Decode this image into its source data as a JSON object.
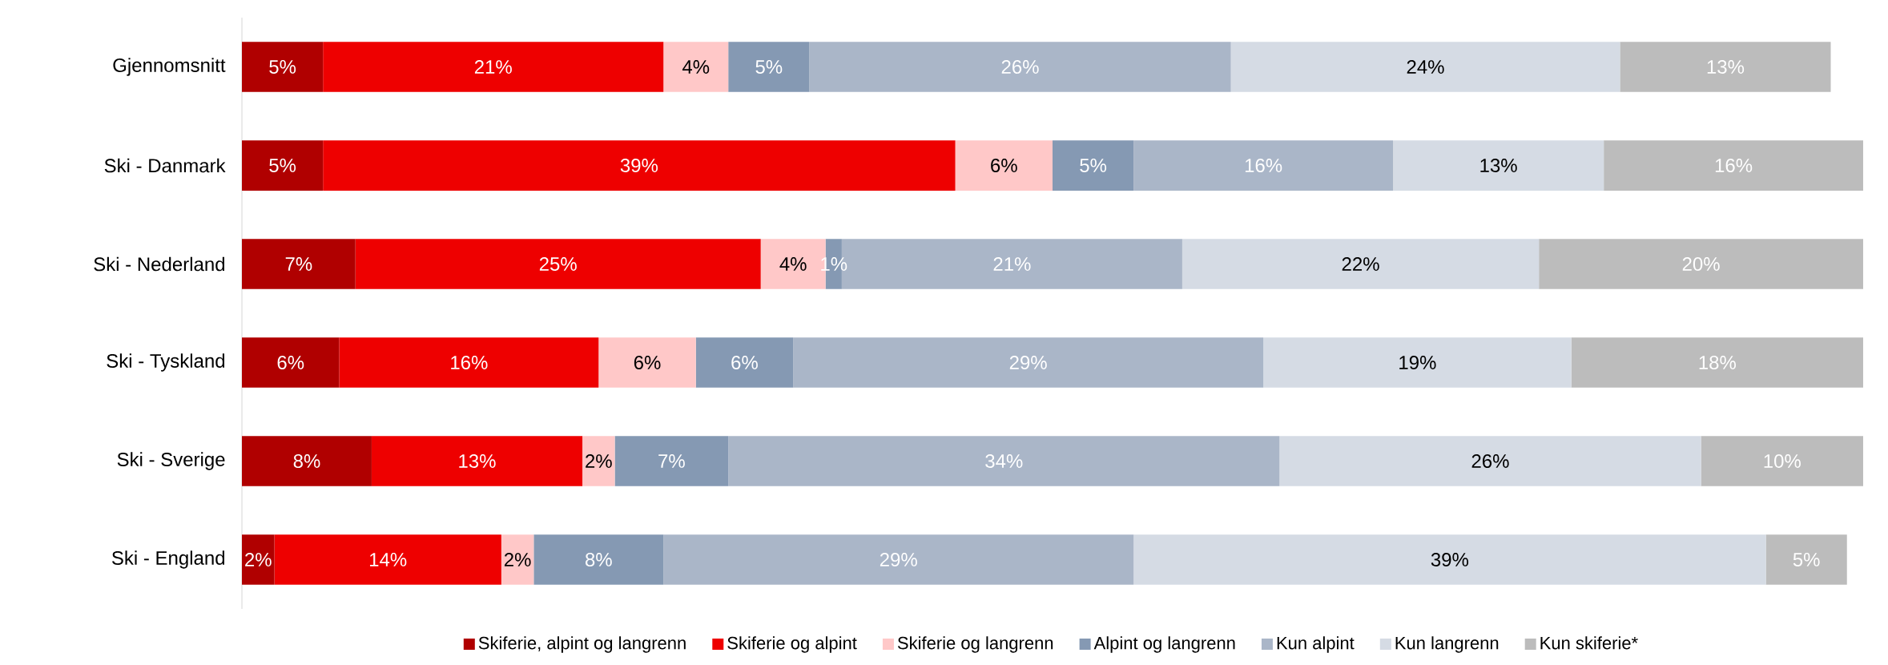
{
  "chart_data": {
    "type": "bar",
    "orientation": "horizontal",
    "stacked": true,
    "legend": "bottom",
    "tick_labels": "y",
    "categories": [
      "Gjennomsnitt",
      "Ski - Danmark",
      "Ski - Nederland",
      "Ski - Tyskland",
      "Ski - Sverige",
      "Ski - England"
    ],
    "series": [
      {
        "name": "Skiferie, alpint og langrenn",
        "color": "#b00000",
        "values": [
          5,
          5,
          7,
          6,
          8,
          2
        ],
        "value_labels": [
          "5%",
          "5%",
          "7%",
          "6%",
          "8%",
          "2%"
        ]
      },
      {
        "name": "Skiferie og alpint",
        "color": "#ee0000",
        "values": [
          21,
          39,
          25,
          16,
          13,
          14
        ],
        "value_labels": [
          "21%",
          "39%",
          "25%",
          "16%",
          "13%",
          "14%"
        ]
      },
      {
        "name": "Skiferie og langrenn",
        "color": "#ffc8c8",
        "values": [
          4,
          6,
          4,
          6,
          2,
          2
        ],
        "value_labels": [
          "4%",
          "6%",
          "4%",
          "6%",
          "2%",
          "2%"
        ]
      },
      {
        "name": "Alpint og langrenn",
        "color": "#8599b3",
        "values": [
          5,
          5,
          1,
          6,
          7,
          8
        ],
        "value_labels": [
          "5%",
          "5%",
          "1%",
          "6%",
          "7%",
          "8%"
        ]
      },
      {
        "name": "Kun alpint",
        "color": "#aab6c8",
        "values": [
          26,
          16,
          21,
          29,
          34,
          29
        ],
        "value_labels": [
          "26%",
          "16%",
          "21%",
          "29%",
          "34%",
          "29%"
        ]
      },
      {
        "name": "Kun langrenn",
        "color": "#d5dbe4",
        "values": [
          24,
          13,
          22,
          19,
          26,
          39
        ],
        "value_labels": [
          "24%",
          "13%",
          "22%",
          "19%",
          "26%",
          "39%"
        ]
      },
      {
        "name": "Kun skiferie*",
        "color": "#bcbcbc",
        "values": [
          13,
          16,
          20,
          18,
          10,
          5
        ],
        "value_labels": [
          "13%",
          "16%",
          "20%",
          "18%",
          "10%",
          "5%"
        ]
      }
    ]
  }
}
